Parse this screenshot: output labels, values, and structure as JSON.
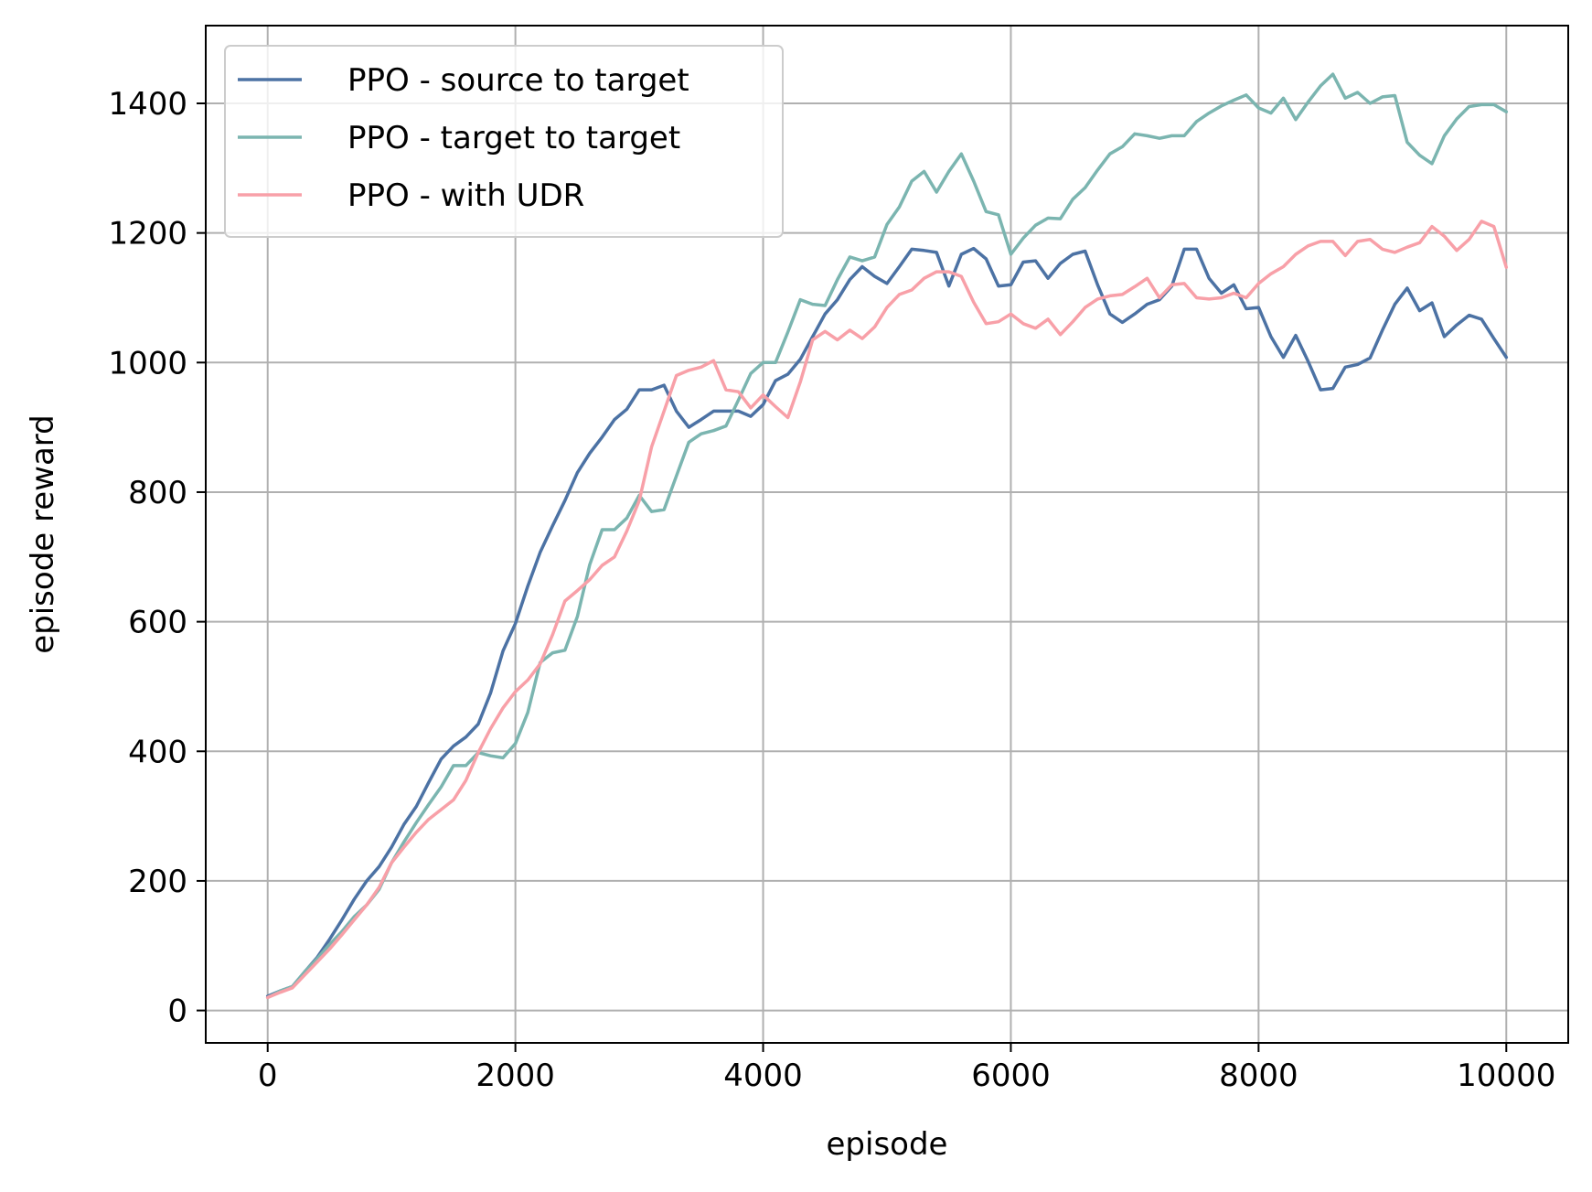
{
  "chart_data": {
    "type": "line",
    "title": "",
    "xlabel": "episode",
    "ylabel": "episode reward",
    "xlim": [
      -500,
      10500
    ],
    "ylim": [
      -50,
      1520
    ],
    "xticks": [
      0,
      2000,
      4000,
      6000,
      8000,
      10000
    ],
    "yticks": [
      0,
      200,
      400,
      600,
      800,
      1000,
      1200,
      1400
    ],
    "grid": true,
    "legend_position": "upper-left",
    "x": [
      0,
      100,
      200,
      300,
      400,
      500,
      600,
      700,
      800,
      900,
      1000,
      1100,
      1200,
      1300,
      1400,
      1500,
      1600,
      1700,
      1800,
      1900,
      2000,
      2100,
      2200,
      2300,
      2400,
      2500,
      2600,
      2700,
      2800,
      2900,
      3000,
      3100,
      3200,
      3300,
      3400,
      3500,
      3600,
      3700,
      3800,
      3900,
      4000,
      4100,
      4200,
      4300,
      4400,
      4500,
      4600,
      4700,
      4800,
      4900,
      5000,
      5100,
      5200,
      5300,
      5400,
      5500,
      5600,
      5700,
      5800,
      5900,
      6000,
      6100,
      6200,
      6300,
      6400,
      6500,
      6600,
      6700,
      6800,
      6900,
      7000,
      7100,
      7200,
      7300,
      7400,
      7500,
      7600,
      7700,
      7800,
      7900,
      8000,
      8100,
      8200,
      8300,
      8400,
      8500,
      8600,
      8700,
      8800,
      8900,
      9000,
      9100,
      9200,
      9300,
      9400,
      9500,
      9600,
      9700,
      9800,
      9900,
      10000
    ],
    "series": [
      {
        "name": "PPO - source to target",
        "color": "#4c72a4",
        "values": [
          22,
          30,
          37,
          60,
          82,
          110,
          140,
          172,
          200,
          222,
          252,
          287,
          315,
          352,
          388,
          408,
          422,
          442,
          490,
          555,
          597,
          655,
          707,
          748,
          787,
          830,
          860,
          885,
          912,
          928,
          958,
          958,
          965,
          925,
          900,
          912,
          925,
          925,
          925,
          917,
          935,
          972,
          982,
          1005,
          1040,
          1075,
          1097,
          1128,
          1148,
          1133,
          1122,
          1148,
          1175,
          1173,
          1170,
          1118,
          1167,
          1176,
          1160,
          1118,
          1120,
          1155,
          1157,
          1130,
          1153,
          1167,
          1172,
          1120,
          1075,
          1062,
          1075,
          1090,
          1097,
          1118,
          1175,
          1175,
          1130,
          1107,
          1120,
          1083,
          1085,
          1040,
          1008,
          1042,
          1002,
          958,
          960,
          993,
          997,
          1007,
          1050,
          1090,
          1115,
          1080,
          1092,
          1040,
          1058,
          1073,
          1067,
          1037,
          1008
        ]
      },
      {
        "name": "PPO - target to target",
        "color": "#7bb5b0",
        "values": [
          20,
          30,
          37,
          60,
          80,
          102,
          122,
          145,
          163,
          187,
          228,
          260,
          290,
          318,
          345,
          378,
          378,
          398,
          393,
          390,
          412,
          460,
          537,
          552,
          556,
          608,
          688,
          742,
          742,
          760,
          795,
          770,
          773,
          825,
          877,
          890,
          895,
          902,
          942,
          983,
          1000,
          1000,
          1047,
          1097,
          1090,
          1088,
          1128,
          1163,
          1157,
          1163,
          1213,
          1240,
          1280,
          1295,
          1263,
          1295,
          1322,
          1280,
          1233,
          1228,
          1167,
          1192,
          1212,
          1223,
          1222,
          1252,
          1270,
          1297,
          1322,
          1333,
          1353,
          1350,
          1346,
          1350,
          1350,
          1372,
          1385,
          1396,
          1405,
          1413,
          1393,
          1385,
          1408,
          1375,
          1402,
          1427,
          1445,
          1408,
          1417,
          1400,
          1410,
          1412,
          1340,
          1320,
          1307,
          1350,
          1376,
          1395,
          1398,
          1398,
          1387
        ]
      },
      {
        "name": "PPO - with UDR",
        "color": "#f8a0a8",
        "values": [
          20,
          28,
          35,
          55,
          75,
          95,
          117,
          140,
          163,
          190,
          228,
          252,
          275,
          295,
          310,
          325,
          355,
          398,
          435,
          467,
          492,
          510,
          535,
          580,
          632,
          648,
          665,
          687,
          700,
          740,
          787,
          870,
          925,
          980,
          988,
          993,
          1003,
          958,
          955,
          930,
          950,
          932,
          915,
          970,
          1035,
          1048,
          1035,
          1050,
          1037,
          1055,
          1085,
          1105,
          1112,
          1130,
          1140,
          1140,
          1133,
          1093,
          1060,
          1063,
          1075,
          1060,
          1053,
          1067,
          1043,
          1063,
          1085,
          1098,
          1103,
          1105,
          1117,
          1130,
          1100,
          1120,
          1122,
          1100,
          1098,
          1100,
          1107,
          1100,
          1122,
          1137,
          1148,
          1167,
          1180,
          1187,
          1187,
          1165,
          1187,
          1190,
          1175,
          1170,
          1178,
          1185,
          1210,
          1195,
          1173,
          1190,
          1218,
          1210,
          1147
        ]
      }
    ]
  }
}
